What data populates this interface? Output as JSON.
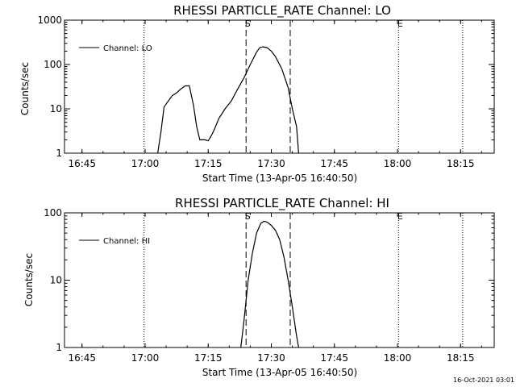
{
  "chart_data": [
    {
      "type": "line",
      "title": "RHESSI PARTICLE_RATE Channel: LO",
      "xlabel": "Start Time (13-Apr-05 16:40:50)",
      "ylabel": "Counts/sec",
      "y_scale": "log",
      "ylim": [
        1,
        1000
      ],
      "xlim": [
        "16:40:50",
        "18:23:00"
      ],
      "x_ticks": [
        "16:45",
        "17:00",
        "17:15",
        "17:30",
        "17:45",
        "18:00",
        "18:15"
      ],
      "y_ticks": [
        "1",
        "10",
        "100",
        "1000"
      ],
      "legend": {
        "position": "top-left",
        "entries": [
          "Channel: LO"
        ]
      },
      "series": [
        {
          "name": "Channel: LO",
          "x": [
            "17:03:00",
            "17:03:45",
            "17:04:30",
            "17:05:30",
            "17:06:30",
            "17:07:30",
            "17:08:30",
            "17:09:30",
            "17:10:30",
            "17:11:30",
            "17:12:15",
            "17:13:00",
            "17:13:30",
            "17:14:15",
            "17:15:00",
            "17:15:45",
            "17:16:30",
            "17:17:30",
            "17:19:00",
            "17:20:30",
            "17:22:00",
            "17:23:30",
            "17:25:00",
            "17:26:30",
            "17:27:15",
            "17:28:00",
            "17:29:00",
            "17:30:00",
            "17:31:00",
            "17:32:30",
            "17:34:00",
            "17:35:00",
            "17:36:00",
            "17:36:30"
          ],
          "values": [
            1,
            3,
            11,
            15,
            20,
            23,
            28,
            33,
            33,
            12,
            4,
            2,
            2,
            2,
            1.9,
            2.5,
            3.5,
            6,
            10,
            15,
            28,
            50,
            100,
            190,
            240,
            250,
            240,
            200,
            150,
            80,
            30,
            10,
            4,
            1
          ]
        }
      ],
      "vertical_lines": [
        {
          "time": "16:59:45",
          "style": "dotted",
          "label": ""
        },
        {
          "time": "17:24:00",
          "style": "dashed",
          "label": "S"
        },
        {
          "time": "17:34:30",
          "style": "dashed",
          "label": ""
        },
        {
          "time": "18:00:15",
          "style": "dotted",
          "label": "E"
        },
        {
          "time": "18:15:30",
          "style": "dotted",
          "label": ""
        }
      ]
    },
    {
      "type": "line",
      "title": "RHESSI PARTICLE_RATE Channel: HI",
      "xlabel": "Start Time (13-Apr-05 16:40:50)",
      "ylabel": "Counts/sec",
      "y_scale": "log",
      "ylim": [
        1,
        100
      ],
      "xlim": [
        "16:40:50",
        "18:23:00"
      ],
      "x_ticks": [
        "16:45",
        "17:00",
        "17:15",
        "17:30",
        "17:45",
        "18:00",
        "18:15"
      ],
      "y_ticks": [
        "1",
        "10",
        "100"
      ],
      "legend": {
        "position": "top-left",
        "entries": [
          "Channel: HI"
        ]
      },
      "series": [
        {
          "name": "Channel: HI",
          "x": [
            "17:22:45",
            "17:23:30",
            "17:24:30",
            "17:25:30",
            "17:26:30",
            "17:27:30",
            "17:28:15",
            "17:29:00",
            "17:30:00",
            "17:31:00",
            "17:32:00",
            "17:33:00",
            "17:34:00",
            "17:35:00",
            "17:36:00",
            "17:36:30"
          ],
          "values": [
            1,
            2.5,
            10,
            25,
            50,
            70,
            75,
            73,
            65,
            55,
            40,
            22,
            10,
            4,
            1.5,
            1
          ]
        }
      ],
      "vertical_lines": [
        {
          "time": "16:59:45",
          "style": "dotted",
          "label": ""
        },
        {
          "time": "17:24:00",
          "style": "dashed",
          "label": "S"
        },
        {
          "time": "17:34:30",
          "style": "dashed",
          "label": ""
        },
        {
          "time": "18:00:15",
          "style": "dotted",
          "label": "E"
        },
        {
          "time": "18:15:30",
          "style": "dotted",
          "label": ""
        }
      ]
    }
  ],
  "footer": {
    "timestamp": "16-Oct-2021 03:01"
  }
}
